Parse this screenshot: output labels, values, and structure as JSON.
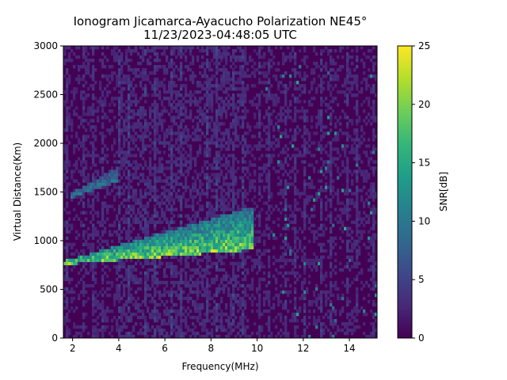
{
  "chart_data": {
    "type": "heatmap",
    "title_line1": "Ionogram Jicamarca-Ayacucho Polarization NE45°",
    "title_line2": "11/23/2023-04:48:05 UTC",
    "xlabel": "Frequency(MHz)",
    "ylabel": "Virtual Distance(Km)",
    "colorbar_label": "SNR[dB]",
    "xlim": [
      1.6,
      15.2
    ],
    "ylim": [
      0,
      3000
    ],
    "x_ticks": [
      2,
      4,
      6,
      8,
      10,
      12,
      14
    ],
    "y_ticks": [
      0,
      500,
      1000,
      1500,
      2000,
      2500,
      3000
    ],
    "colorbar_range": [
      0,
      25
    ],
    "colorbar_ticks": [
      0,
      5,
      10,
      15,
      20,
      25
    ],
    "colormap": "viridis",
    "colormap_stops": [
      "#440154",
      "#482878",
      "#3e4989",
      "#31688e",
      "#26828e",
      "#1f9e89",
      "#35b779",
      "#6ece58",
      "#b5de2b",
      "#fde725"
    ],
    "grid": false,
    "traces": [
      {
        "name_visible": false,
        "x_range": [
          1.6,
          9.8
        ],
        "y_start": 780,
        "y_end": 930,
        "spread_start": 10,
        "spread_end": 420,
        "snr": 24
      },
      {
        "name_visible": false,
        "x_range": [
          1.9,
          4.0
        ],
        "y_start": 1460,
        "y_end": 1640,
        "spread_start": 20,
        "spread_end": 130,
        "snr": 12
      }
    ]
  }
}
